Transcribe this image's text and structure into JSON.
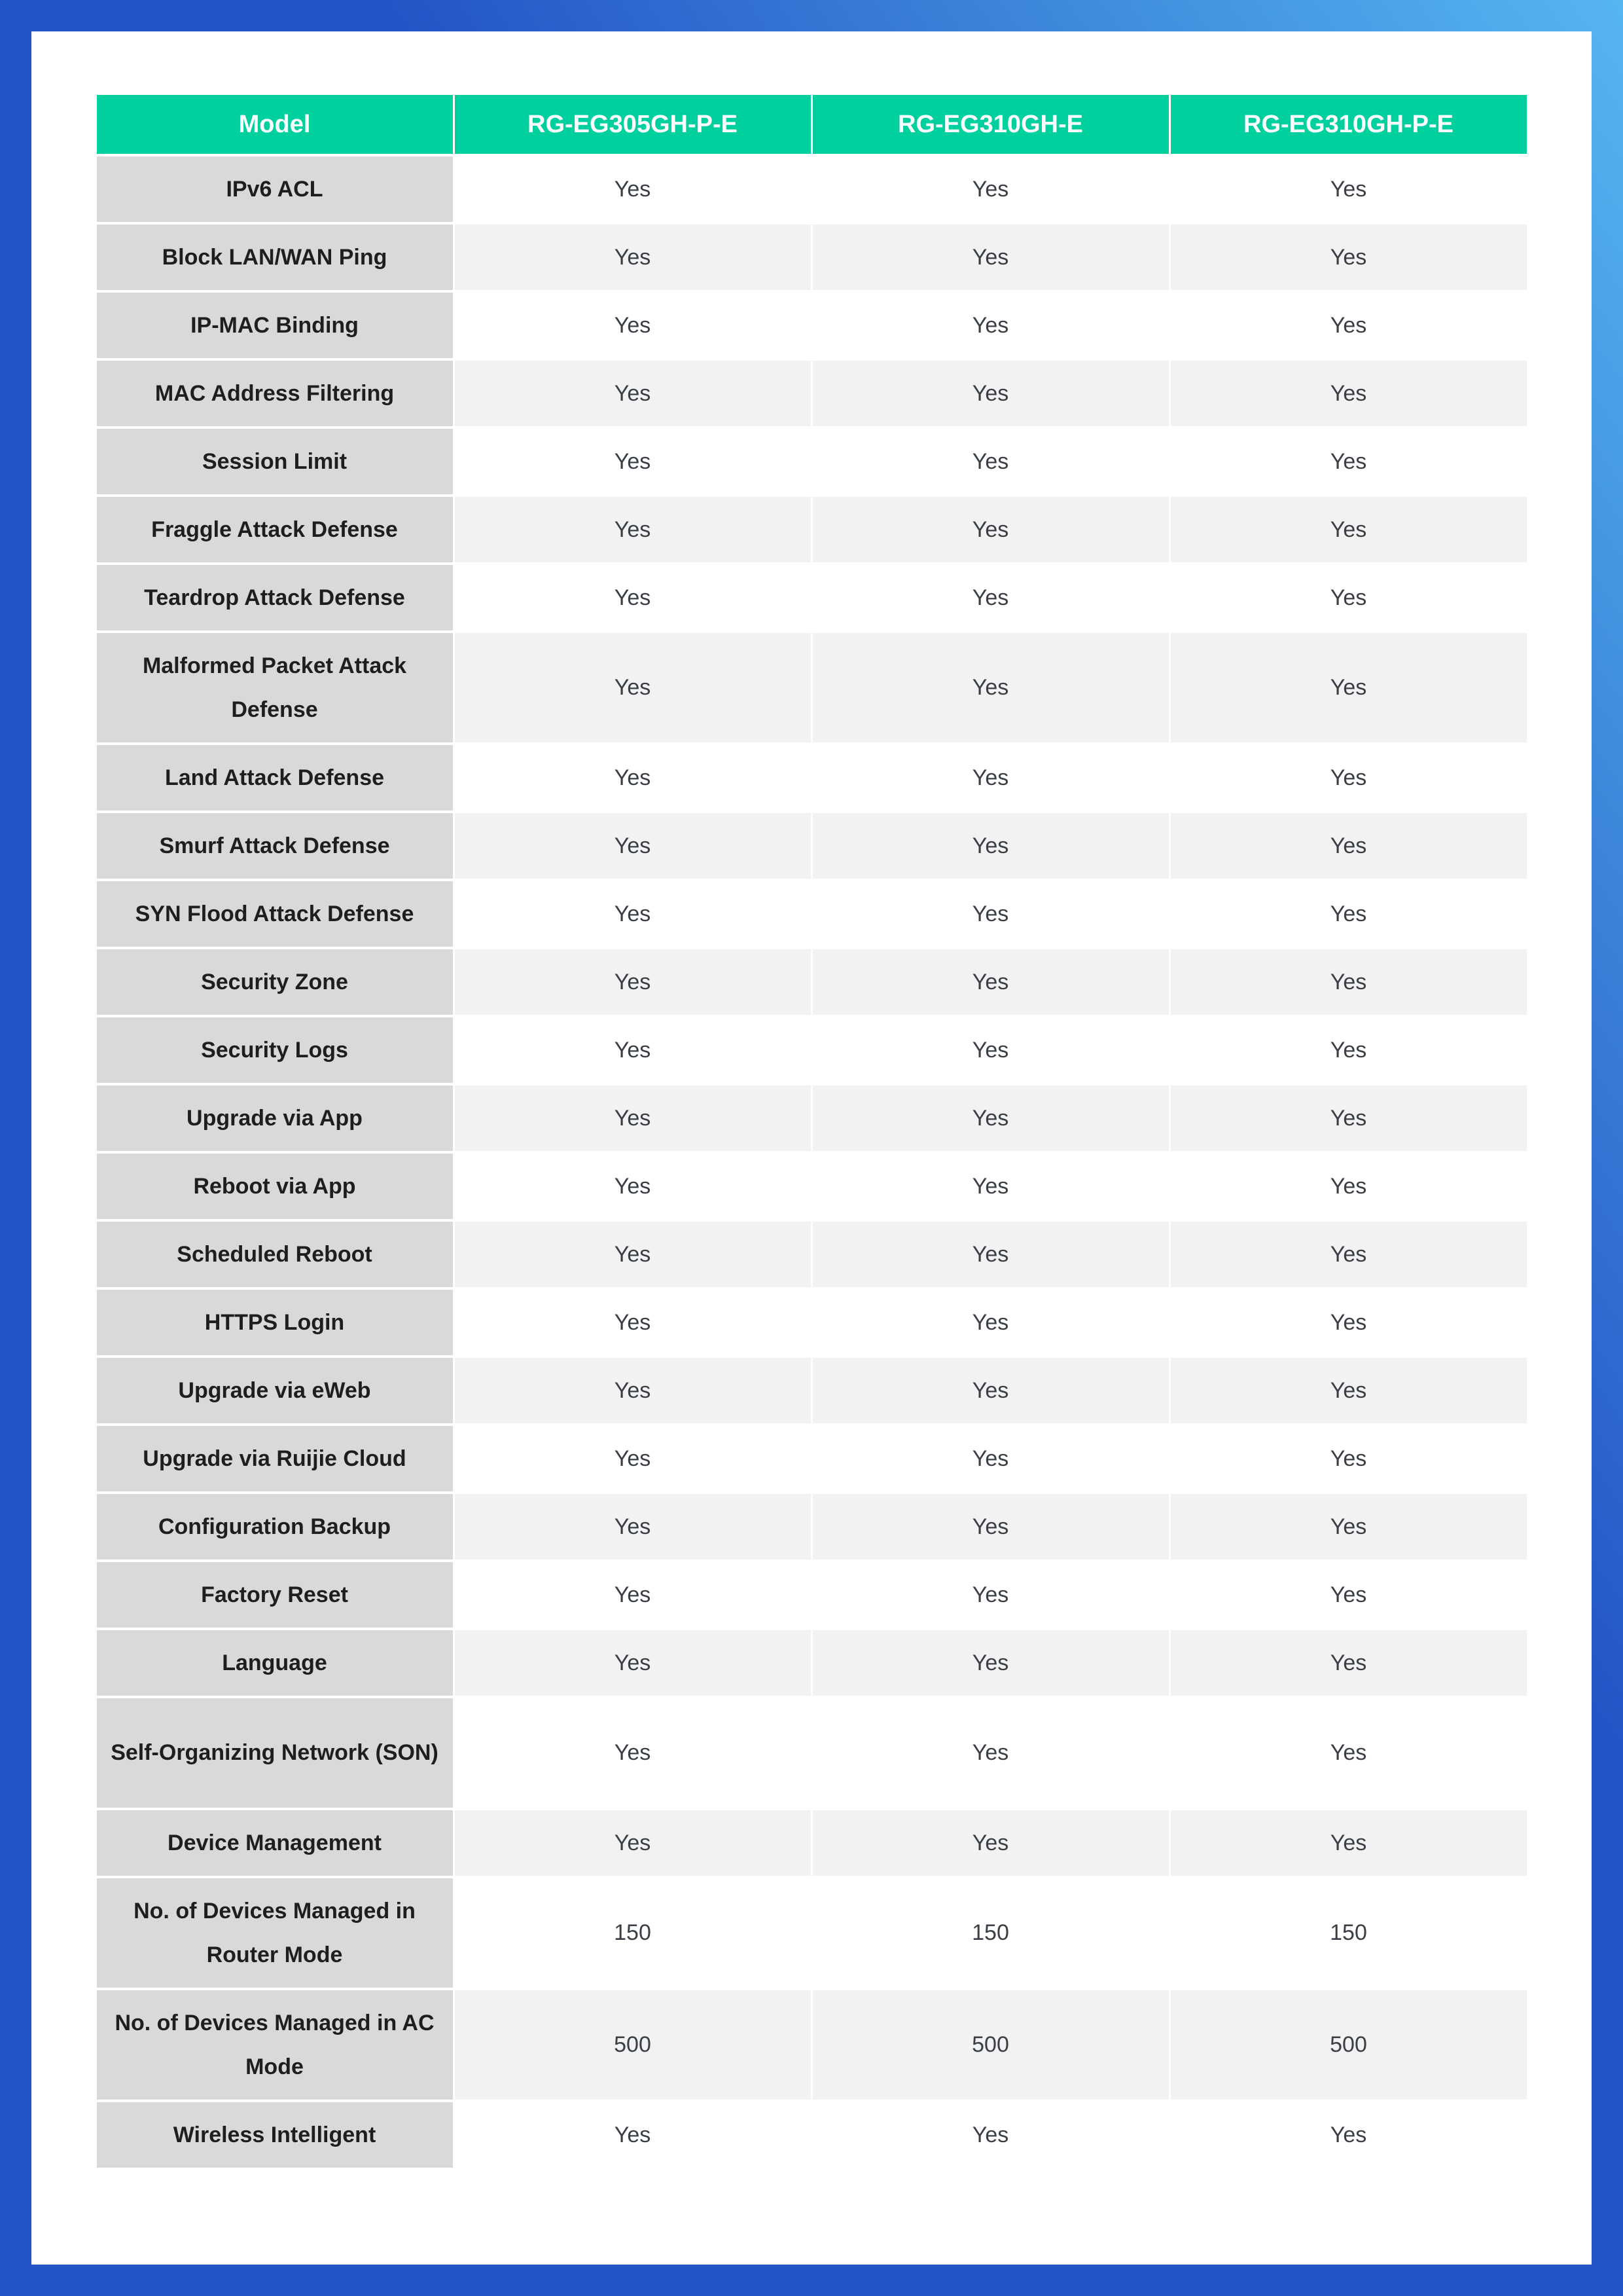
{
  "colors": {
    "header_green": "#00D09E",
    "label_gray": "#D9D9D9",
    "alt_row_gray": "#F2F2F2",
    "frame_blue": "#2355C6",
    "frame_sky_blue": "#56B6F0",
    "header_text": "#FFFFFF",
    "label_text": "#1E1E1E",
    "value_text": "#3A3F46"
  },
  "table": {
    "columns": [
      "Model",
      "RG-EG305GH-P-E",
      "RG-EG310GH-E",
      "RG-EG310GH-P-E"
    ],
    "rows": [
      {
        "label": "IPv6 ACL",
        "values": [
          "Yes",
          "Yes",
          "Yes"
        ]
      },
      {
        "label": "Block LAN/WAN Ping",
        "values": [
          "Yes",
          "Yes",
          "Yes"
        ]
      },
      {
        "label": "IP-MAC Binding",
        "values": [
          "Yes",
          "Yes",
          "Yes"
        ]
      },
      {
        "label": "MAC Address Filtering",
        "values": [
          "Yes",
          "Yes",
          "Yes"
        ]
      },
      {
        "label": "Session Limit",
        "values": [
          "Yes",
          "Yes",
          "Yes"
        ]
      },
      {
        "label": "Fraggle Attack Defense",
        "values": [
          "Yes",
          "Yes",
          "Yes"
        ]
      },
      {
        "label": "Teardrop Attack Defense",
        "values": [
          "Yes",
          "Yes",
          "Yes"
        ]
      },
      {
        "label": "Malformed Packet Attack Defense",
        "values": [
          "Yes",
          "Yes",
          "Yes"
        ]
      },
      {
        "label": "Land Attack Defense",
        "values": [
          "Yes",
          "Yes",
          "Yes"
        ]
      },
      {
        "label": "Smurf Attack Defense",
        "values": [
          "Yes",
          "Yes",
          "Yes"
        ]
      },
      {
        "label": "SYN Flood Attack Defense",
        "values": [
          "Yes",
          "Yes",
          "Yes"
        ]
      },
      {
        "label": "Security Zone",
        "values": [
          "Yes",
          "Yes",
          "Yes"
        ]
      },
      {
        "label": "Security Logs",
        "values": [
          "Yes",
          "Yes",
          "Yes"
        ]
      },
      {
        "label": "Upgrade via App",
        "values": [
          "Yes",
          "Yes",
          "Yes"
        ]
      },
      {
        "label": "Reboot via App",
        "values": [
          "Yes",
          "Yes",
          "Yes"
        ]
      },
      {
        "label": "Scheduled Reboot",
        "values": [
          "Yes",
          "Yes",
          "Yes"
        ]
      },
      {
        "label": "HTTPS Login",
        "values": [
          "Yes",
          "Yes",
          "Yes"
        ]
      },
      {
        "label": "Upgrade via eWeb",
        "values": [
          "Yes",
          "Yes",
          "Yes"
        ]
      },
      {
        "label": "Upgrade via Ruijie Cloud",
        "values": [
          "Yes",
          "Yes",
          "Yes"
        ]
      },
      {
        "label": "Configuration Backup",
        "values": [
          "Yes",
          "Yes",
          "Yes"
        ]
      },
      {
        "label": "Factory Reset",
        "values": [
          "Yes",
          "Yes",
          "Yes"
        ]
      },
      {
        "label": "Language",
        "values": [
          "Yes",
          "Yes",
          "Yes"
        ]
      },
      {
        "label": "Self-Organizing Network (SON)",
        "values": [
          "Yes",
          "Yes",
          "Yes"
        ]
      },
      {
        "label": "Device Management",
        "values": [
          "Yes",
          "Yes",
          "Yes"
        ]
      },
      {
        "label": "No. of Devices Managed in Router Mode",
        "values": [
          "150",
          "150",
          "150"
        ]
      },
      {
        "label": "No. of Devices Managed in AC Mode",
        "values": [
          "500",
          "500",
          "500"
        ]
      },
      {
        "label": "Wireless Intelligent",
        "values": [
          "Yes",
          "Yes",
          "Yes"
        ]
      }
    ]
  }
}
